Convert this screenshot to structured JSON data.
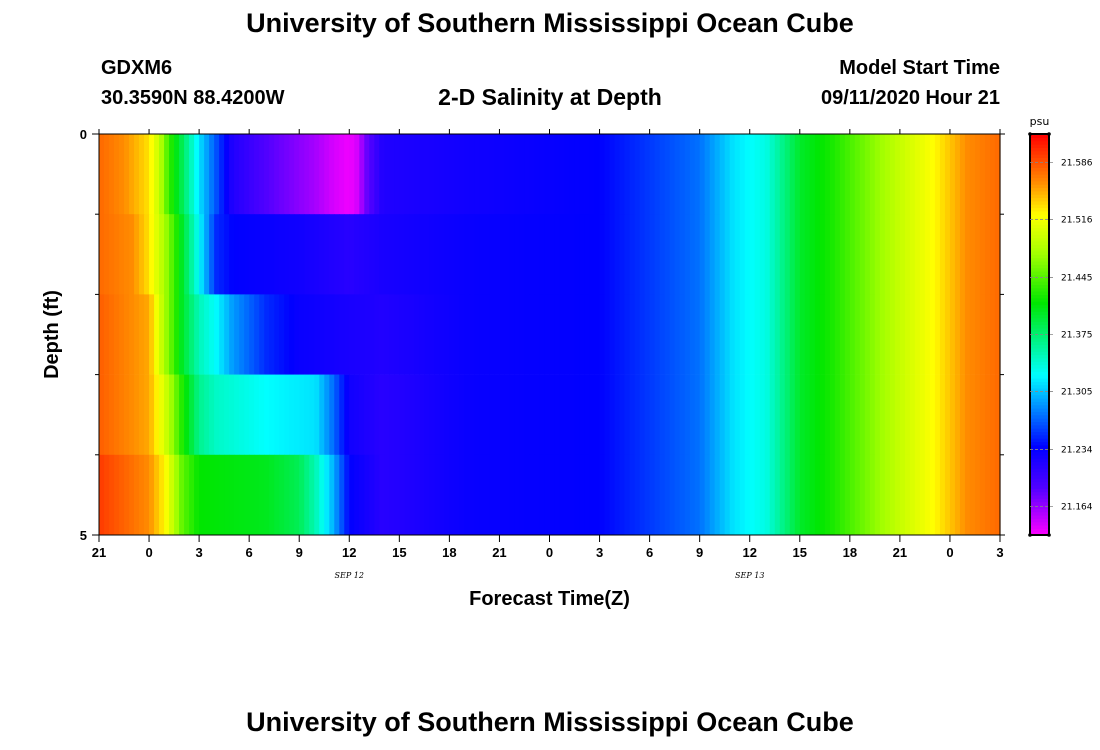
{
  "header": {
    "title": "University of Southern Mississippi Ocean Cube",
    "station": "GDXM6",
    "location": "30.3590N 88.4200W",
    "plot_title": "2-D Salinity at Depth",
    "start_label": "Model Start Time",
    "start_value": "09/11/2020 Hour 21"
  },
  "footer": {
    "title": "University of Southern Mississippi Ocean Cube"
  },
  "chart_data": {
    "type": "heatmap",
    "xlabel": "Forecast Time(Z)",
    "ylabel": "Depth (ft)",
    "x_tick_labels": [
      "21",
      "0",
      "3",
      "6",
      "9",
      "12",
      "15",
      "18",
      "21",
      "0",
      "3",
      "6",
      "9",
      "12",
      "15",
      "18",
      "21",
      "0",
      "3"
    ],
    "date_labels": [
      {
        "label": "SEP 12",
        "hour_offset": 15
      },
      {
        "label": "SEP 13",
        "hour_offset": 39
      }
    ],
    "x_range_hours": [
      0,
      54
    ],
    "ylim": [
      0,
      5
    ],
    "y_tick_labels": [
      "0",
      "5"
    ],
    "y_minor_ticks": [
      1,
      2,
      3,
      4
    ],
    "depth_layers": [
      0,
      1,
      2,
      3,
      4,
      5
    ],
    "colorbar": {
      "unit": "psu",
      "min": 21.129,
      "max": 21.621,
      "tick_labels": [
        "21.586",
        "21.516",
        "21.445",
        "21.375",
        "21.305",
        "21.234",
        "21.164"
      ],
      "tick_values": [
        21.586,
        21.516,
        21.445,
        21.375,
        21.305,
        21.234,
        21.164
      ]
    },
    "colors": {
      "scale_low": "#ff00ff",
      "scale_high": "#ff0000"
    }
  }
}
